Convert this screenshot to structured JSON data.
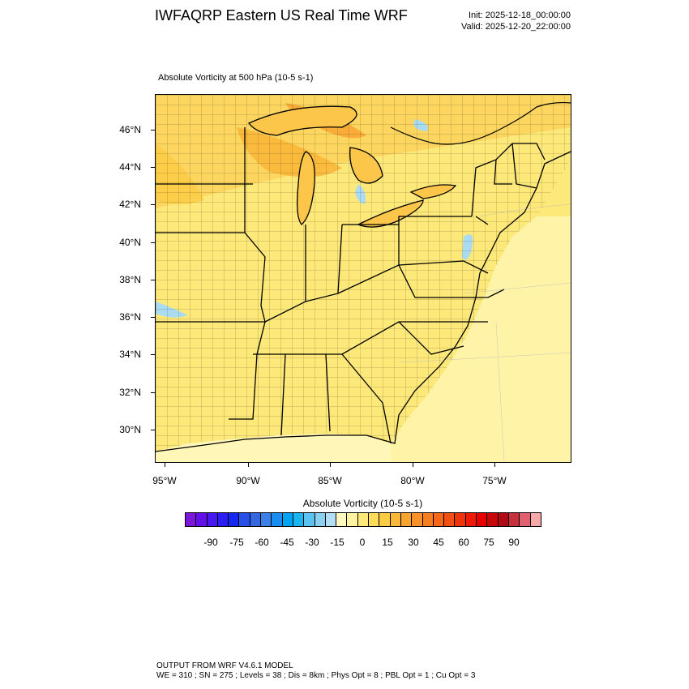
{
  "header": {
    "title": "IWFAQRP Eastern US Real Time WRF",
    "init": "Init: 2025-12-18_00:00:00",
    "valid": "Valid: 2025-12-20_22:00:00"
  },
  "field": {
    "title": "Absolute Vorticity at 500 hPa   (10-5 s-1)"
  },
  "map": {
    "lat_labels": [
      "46°N",
      "44°N",
      "42°N",
      "40°N",
      "38°N",
      "36°N",
      "34°N",
      "32°N",
      "30°N"
    ],
    "lon_labels": [
      "95°W",
      "90°W",
      "85°W",
      "80°W",
      "75°W"
    ],
    "colors": {
      "land_base": "#fde87a",
      "ocean": "#fff3a8",
      "warm": "#fcc64a",
      "strong": "#f9a42e",
      "water": "#aadbf0",
      "border": "#000000"
    }
  },
  "colorbar": {
    "title": "Absolute Vorticity  (10-5 s-1)",
    "labels": [
      "-90",
      "-75",
      "-60",
      "-45",
      "-30",
      "-15",
      "0",
      "15",
      "30",
      "45",
      "60",
      "75",
      "90"
    ],
    "colors": [
      "#7b17d8",
      "#6212e6",
      "#4718f0",
      "#2a1ef2",
      "#1428f0",
      "#2850e8",
      "#3568e0",
      "#3a80e8",
      "#1a8ef0",
      "#00a4f2",
      "#1ab4f0",
      "#5cc3f0",
      "#8cd0f0",
      "#b4def4",
      "#fff7c0",
      "#fff2a0",
      "#fde87a",
      "#fddc5a",
      "#fbcb44",
      "#f9b83a",
      "#f8a530",
      "#f79228",
      "#f67e20",
      "#f46818",
      "#f25012",
      "#ef340c",
      "#ed1a08",
      "#e80000",
      "#c80808",
      "#b00a14",
      "#c8303c",
      "#e06070",
      "#f8a8a8"
    ]
  },
  "footer": {
    "line1": "OUTPUT FROM WRF V4.6.1 MODEL",
    "line2": "WE = 310 ; SN = 275 ; Levels = 38 ; Dis = 8km ; Phys Opt = 8 ; PBL Opt = 1 ; Cu Opt = 3"
  }
}
